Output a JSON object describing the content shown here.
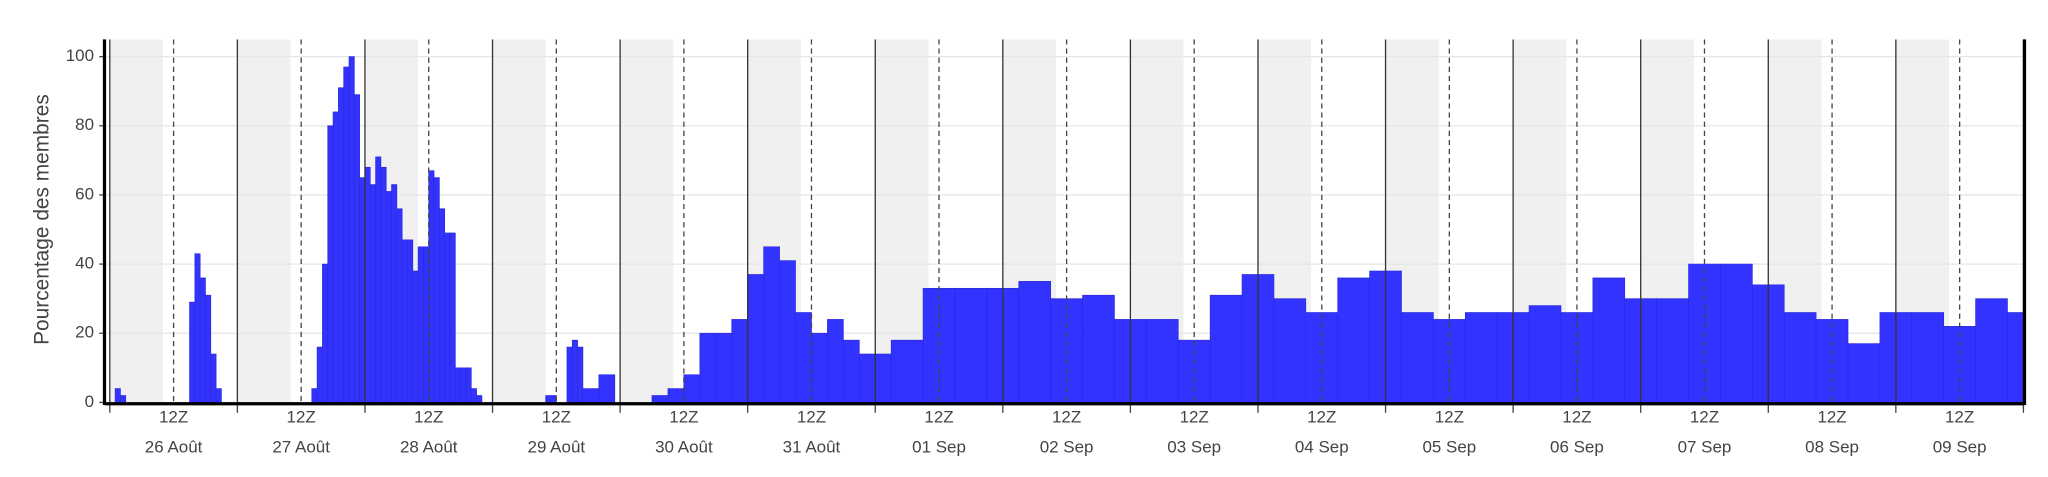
{
  "chart_data": {
    "type": "histogram",
    "ylabel": "Pourcentage des membres",
    "color": "#3333ff",
    "bins": [
      1,
      2,
      3,
      15,
      16,
      17,
      18,
      19,
      20,
      21,
      38,
      39,
      40,
      41,
      42,
      43,
      44,
      45,
      46,
      47,
      48,
      49,
      50,
      51,
      52,
      53,
      54,
      55,
      56,
      57,
      58,
      59,
      60,
      61,
      62,
      63,
      64,
      65,
      66,
      67,
      68,
      69,
      70,
      82,
      84,
      86,
      87,
      88,
      89,
      92,
      95,
      102,
      105,
      108,
      111,
      114,
      117,
      120,
      123,
      126,
      129,
      132,
      135,
      138,
      141,
      144,
      147,
      153,
      159,
      165,
      171,
      177,
      183,
      189,
      195,
      201,
      207,
      213,
      219,
      225,
      231,
      237,
      243,
      249,
      255,
      261,
      267,
      273,
      279,
      285,
      291,
      297,
      303,
      309,
      315,
      321,
      327,
      333,
      339,
      345,
      351,
      357,
      363
    ],
    "counts": [
      4,
      2,
      0,
      29,
      43,
      36,
      31,
      14,
      4,
      0,
      4,
      16,
      40,
      80,
      84,
      91,
      97,
      100,
      89,
      65,
      68,
      63,
      71,
      68,
      61,
      63,
      56,
      47,
      47,
      38,
      45,
      45,
      67,
      65,
      56,
      49,
      49,
      10,
      10,
      10,
      4,
      2,
      0,
      2,
      0,
      16,
      18,
      16,
      4,
      8,
      0,
      2,
      4,
      8,
      20,
      20,
      24,
      37,
      45,
      41,
      26,
      20,
      24,
      18,
      14,
      14,
      18,
      33,
      33,
      33,
      35,
      30,
      31,
      24,
      24,
      18,
      31,
      37,
      30,
      26,
      36,
      38,
      26,
      24,
      26,
      26,
      28,
      26,
      36,
      30,
      30,
      40,
      40,
      34,
      26,
      24,
      17,
      26,
      26,
      22,
      30,
      26
    ],
    "xlim": [
      -1,
      360.2
    ],
    "ylim": [
      0,
      105
    ],
    "yticks": [
      0,
      20,
      40,
      60,
      80,
      100
    ],
    "grid": true,
    "xticks": [
      {
        "value": 12,
        "label": "12Z"
      },
      {
        "value": 36,
        "label": "12Z"
      },
      {
        "value": 60,
        "label": "12Z"
      },
      {
        "value": 84,
        "label": "12Z"
      },
      {
        "value": 108,
        "label": "12Z"
      },
      {
        "value": 132,
        "label": "12Z"
      },
      {
        "value": 156,
        "label": "12Z"
      },
      {
        "value": 180,
        "label": "12Z"
      },
      {
        "value": 204,
        "label": "12Z"
      },
      {
        "value": 228,
        "label": "12Z"
      },
      {
        "value": 252,
        "label": "12Z"
      },
      {
        "value": 276,
        "label": "12Z"
      },
      {
        "value": 300,
        "label": "12Z"
      },
      {
        "value": 324,
        "label": "12Z"
      },
      {
        "value": 348,
        "label": "12Z"
      }
    ],
    "xtick_dates": [
      {
        "value": 12,
        "label": "26 Août"
      },
      {
        "value": 36,
        "label": "27 Août"
      },
      {
        "value": 60,
        "label": "28 Août"
      },
      {
        "value": 84,
        "label": "29 Août"
      },
      {
        "value": 108,
        "label": "30 Août"
      },
      {
        "value": 132,
        "label": "31 Août"
      },
      {
        "value": 156,
        "label": "01 Sep"
      },
      {
        "value": 180,
        "label": "02 Sep"
      },
      {
        "value": 204,
        "label": "03 Sep"
      },
      {
        "value": 228,
        "label": "04 Sep"
      },
      {
        "value": 252,
        "label": "05 Sep"
      },
      {
        "value": 276,
        "label": "06 Sep"
      },
      {
        "value": 300,
        "label": "07 Sep"
      },
      {
        "value": 324,
        "label": "08 Sep"
      },
      {
        "value": 348,
        "label": "09 Sep"
      }
    ],
    "day_lines": [
      0,
      24,
      48,
      72,
      96,
      120,
      144,
      168,
      192,
      216,
      240,
      264,
      288,
      312,
      336,
      360
    ],
    "night_shade_hours": 10
  }
}
